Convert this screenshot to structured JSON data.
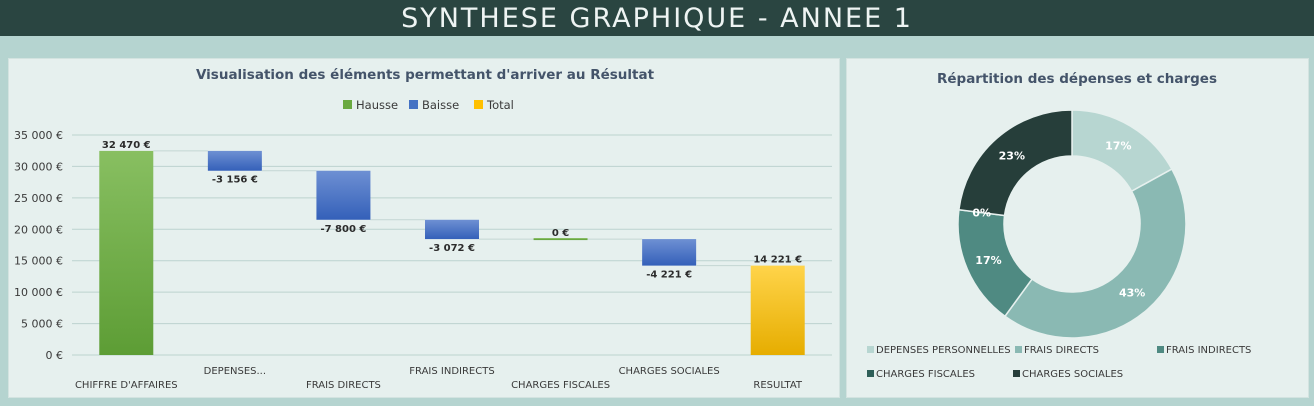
{
  "header": {
    "title": "SYNTHESE GRAPHIQUE - ANNEE 1"
  },
  "colors": {
    "hausse": "#6aa940",
    "baisse": "#4472c4",
    "total": "#ffc000",
    "donut": [
      "#b7d6d1",
      "#8ab9b3",
      "#4f8a82",
      "#2e5f58",
      "#263e3a"
    ]
  },
  "chart_data": [
    {
      "type": "waterfall",
      "title": "Visualisation des éléments permettant d'arriver au Résultat",
      "legend": [
        "Hausse",
        "Baisse",
        "Total"
      ],
      "legend_position": "top",
      "categories": [
        "CHIFFRE D'AFFAIRES",
        "DEPENSES...",
        "FRAIS DIRECTS",
        "FRAIS INDIRECTS",
        "CHARGES FISCALES",
        "CHARGES SOCIALES",
        "RESULTAT"
      ],
      "values": [
        32470,
        -3156,
        -7800,
        -3072,
        0,
        -4221,
        14221
      ],
      "kinds": [
        "hausse",
        "baisse",
        "baisse",
        "baisse",
        "hausse",
        "baisse",
        "total"
      ],
      "data_labels": [
        "32 470 €",
        "-3 156 €",
        "-7 800 €",
        "-3 072 €",
        "0 €",
        "-4 221 €",
        "14 221 €"
      ],
      "ylim": [
        0,
        35000
      ],
      "yticks": [
        0,
        5000,
        10000,
        15000,
        20000,
        25000,
        30000,
        35000
      ],
      "ytick_labels": [
        "0 €",
        "5 000 €",
        "10 000 €",
        "15 000 €",
        "20 000 €",
        "25 000 €",
        "30 000 €",
        "35 000 €"
      ],
      "grid": true
    },
    {
      "type": "pie",
      "subtype": "doughnut",
      "title": "Répartition des dépenses et charges",
      "labels": [
        "DEPENSES PERSONNELLES",
        "FRAIS DIRECTS",
        "FRAIS INDIRECTS",
        "CHARGES FISCALES",
        "CHARGES SOCIALES"
      ],
      "values": [
        17,
        43,
        17,
        0,
        23
      ],
      "data_labels": [
        "17%",
        "43%",
        "17%",
        "0%",
        "23%"
      ],
      "legend_position": "bottom"
    }
  ]
}
